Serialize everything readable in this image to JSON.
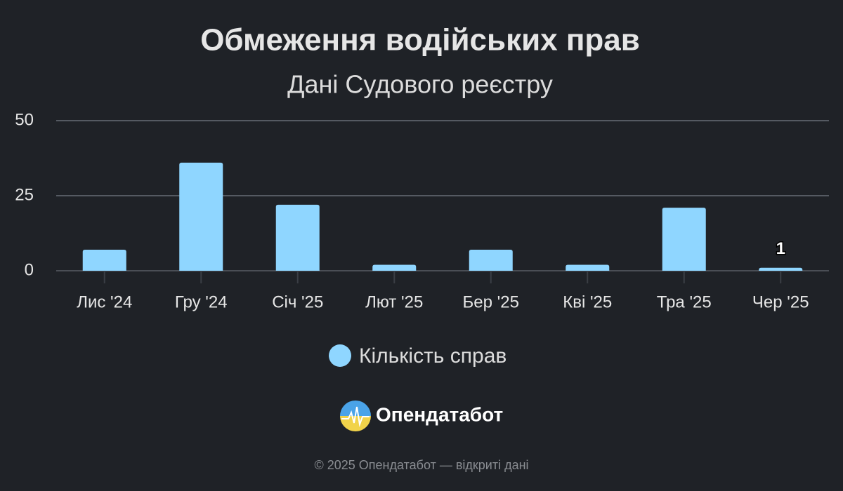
{
  "chart_data": {
    "type": "bar",
    "title": "Обмеження водійських прав",
    "subtitle": "Дані Судового реєстру",
    "categories": [
      "Лис '24",
      "Гру '24",
      "Січ '25",
      "Лют '25",
      "Бер '25",
      "Кві '25",
      "Тра '25",
      "Чер '25"
    ],
    "series": [
      {
        "name": "Кількість справ",
        "color": "#8fd6ff",
        "values": [
          7,
          36,
          22,
          2,
          7,
          2,
          21,
          1
        ]
      }
    ],
    "value_labels": [
      null,
      null,
      null,
      null,
      null,
      null,
      null,
      "1"
    ],
    "ylim": [
      0,
      50
    ],
    "yticks": [
      0,
      25,
      50
    ],
    "grid": true
  },
  "branding": {
    "name": "Опендатабот"
  },
  "footer": {
    "text": "© 2025 Опендатабот — відкриті дані"
  }
}
